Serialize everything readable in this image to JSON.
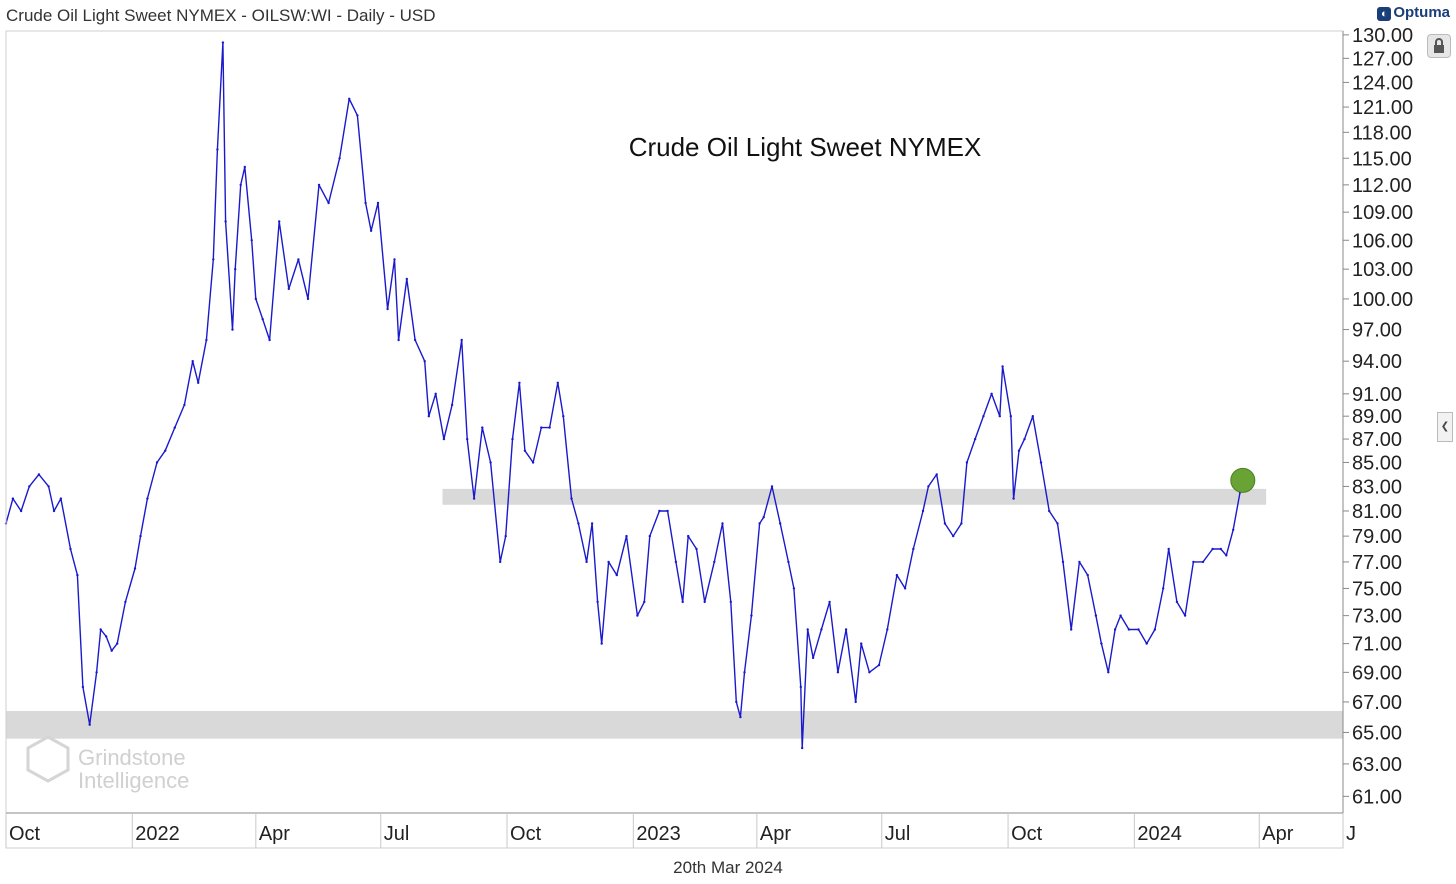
{
  "header": {
    "title": "Crude Oil Light Sweet NYMEX - OILSW:WI - Daily - USD",
    "brand": "Optuma"
  },
  "footer": {
    "date": "20th Mar 2024"
  },
  "watermark": {
    "line1": "Grindstone",
    "line2": "Intelligence"
  },
  "colors": {
    "line": "#1a1acc",
    "band": "#d9d9d9",
    "marker": "#6aa335",
    "axis": "#888888"
  },
  "chart_data": {
    "type": "line",
    "title": "Crude Oil Light Sweet NYMEX",
    "xlabel": "",
    "ylabel": "",
    "log_scale": true,
    "ylim": [
      60.0,
      130.5
    ],
    "xlim": [
      "2021-10-01",
      "2024-06-01"
    ],
    "x_ticks": [
      {
        "date": "2021-10-01",
        "label": "Oct"
      },
      {
        "date": "2022-01-01",
        "label": "2022"
      },
      {
        "date": "2022-04-01",
        "label": "Apr"
      },
      {
        "date": "2022-07-01",
        "label": "Jul"
      },
      {
        "date": "2022-10-01",
        "label": "Oct"
      },
      {
        "date": "2023-01-01",
        "label": "2023"
      },
      {
        "date": "2023-04-01",
        "label": "Apr"
      },
      {
        "date": "2023-07-01",
        "label": "Jul"
      },
      {
        "date": "2023-10-01",
        "label": "Oct"
      },
      {
        "date": "2024-01-01",
        "label": "2024"
      },
      {
        "date": "2024-04-01",
        "label": "Apr"
      },
      {
        "date": "2024-06-01",
        "label": "J"
      }
    ],
    "y_ticks": [
      "130.00",
      "127.00",
      "124.00",
      "121.00",
      "118.00",
      "115.00",
      "112.00",
      "109.00",
      "106.00",
      "103.00",
      "100.00",
      "97.00",
      "94.00",
      "91.00",
      "89.00",
      "87.00",
      "85.00",
      "83.00",
      "81.00",
      "79.00",
      "77.00",
      "75.00",
      "73.00",
      "71.00",
      "69.00",
      "67.00",
      "65.00",
      "63.00",
      "61.00"
    ],
    "grid": false,
    "bands": [
      {
        "name": "resistance zone",
        "y_low": 81.5,
        "y_high": 82.8,
        "x_start": "2022-08-15",
        "x_end": "2024-04-06"
      },
      {
        "name": "support zone",
        "y_low": 64.6,
        "y_high": 66.4,
        "x_start": "2021-10-01",
        "x_end": "2024-06-01"
      }
    ],
    "marker": {
      "date": "2024-03-20",
      "value": 83.5
    },
    "series": [
      {
        "values": [
          [
            "2021-10-01",
            80
          ],
          [
            "2021-10-06",
            82
          ],
          [
            "2021-10-12",
            81
          ],
          [
            "2021-10-18",
            83
          ],
          [
            "2021-10-25",
            84
          ],
          [
            "2021-11-01",
            83
          ],
          [
            "2021-11-05",
            81
          ],
          [
            "2021-11-10",
            82
          ],
          [
            "2021-11-17",
            78
          ],
          [
            "2021-11-22",
            76
          ],
          [
            "2021-11-26",
            68
          ],
          [
            "2021-12-01",
            65.5
          ],
          [
            "2021-12-06",
            69
          ],
          [
            "2021-12-09",
            72
          ],
          [
            "2021-12-13",
            71.5
          ],
          [
            "2021-12-17",
            70.5
          ],
          [
            "2021-12-21",
            71
          ],
          [
            "2021-12-27",
            74
          ],
          [
            "2022-01-03",
            76.5
          ],
          [
            "2022-01-07",
            79
          ],
          [
            "2022-01-12",
            82
          ],
          [
            "2022-01-19",
            85
          ],
          [
            "2022-01-25",
            86
          ],
          [
            "2022-02-01",
            88
          ],
          [
            "2022-02-08",
            90
          ],
          [
            "2022-02-14",
            94
          ],
          [
            "2022-02-18",
            92
          ],
          [
            "2022-02-24",
            96
          ],
          [
            "2022-03-01",
            104
          ],
          [
            "2022-03-04",
            116
          ],
          [
            "2022-03-08",
            129
          ],
          [
            "2022-03-10",
            108
          ],
          [
            "2022-03-15",
            97
          ],
          [
            "2022-03-17",
            103
          ],
          [
            "2022-03-21",
            112
          ],
          [
            "2022-03-24",
            114
          ],
          [
            "2022-03-29",
            106
          ],
          [
            "2022-04-01",
            100
          ],
          [
            "2022-04-06",
            98
          ],
          [
            "2022-04-11",
            96
          ],
          [
            "2022-04-18",
            108
          ],
          [
            "2022-04-25",
            101
          ],
          [
            "2022-05-02",
            104
          ],
          [
            "2022-05-09",
            100
          ],
          [
            "2022-05-17",
            112
          ],
          [
            "2022-05-24",
            110
          ],
          [
            "2022-06-01",
            115
          ],
          [
            "2022-06-08",
            122
          ],
          [
            "2022-06-14",
            120
          ],
          [
            "2022-06-20",
            110
          ],
          [
            "2022-06-24",
            107
          ],
          [
            "2022-06-29",
            110
          ],
          [
            "2022-07-06",
            99
          ],
          [
            "2022-07-11",
            104
          ],
          [
            "2022-07-14",
            96
          ],
          [
            "2022-07-20",
            102
          ],
          [
            "2022-07-26",
            96
          ],
          [
            "2022-08-02",
            94
          ],
          [
            "2022-08-05",
            89
          ],
          [
            "2022-08-10",
            91
          ],
          [
            "2022-08-16",
            87
          ],
          [
            "2022-08-22",
            90
          ],
          [
            "2022-08-29",
            96
          ],
          [
            "2022-09-02",
            87
          ],
          [
            "2022-09-07",
            82
          ],
          [
            "2022-09-13",
            88
          ],
          [
            "2022-09-19",
            85
          ],
          [
            "2022-09-26",
            77
          ],
          [
            "2022-09-30",
            79
          ],
          [
            "2022-10-05",
            87
          ],
          [
            "2022-10-10",
            92
          ],
          [
            "2022-10-14",
            86
          ],
          [
            "2022-10-20",
            85
          ],
          [
            "2022-10-26",
            88
          ],
          [
            "2022-11-01",
            88
          ],
          [
            "2022-11-07",
            92
          ],
          [
            "2022-11-11",
            89
          ],
          [
            "2022-11-17",
            82
          ],
          [
            "2022-11-22",
            80
          ],
          [
            "2022-11-28",
            77
          ],
          [
            "2022-12-02",
            80
          ],
          [
            "2022-12-06",
            74
          ],
          [
            "2022-12-09",
            71
          ],
          [
            "2022-12-14",
            77
          ],
          [
            "2022-12-20",
            76
          ],
          [
            "2022-12-27",
            79
          ],
          [
            "2023-01-04",
            73
          ],
          [
            "2023-01-09",
            74
          ],
          [
            "2023-01-13",
            79
          ],
          [
            "2023-01-20",
            81
          ],
          [
            "2023-01-26",
            81
          ],
          [
            "2023-02-01",
            77
          ],
          [
            "2023-02-06",
            74
          ],
          [
            "2023-02-10",
            79
          ],
          [
            "2023-02-16",
            78
          ],
          [
            "2023-02-22",
            74
          ],
          [
            "2023-03-01",
            77
          ],
          [
            "2023-03-07",
            80
          ],
          [
            "2023-03-13",
            74
          ],
          [
            "2023-03-17",
            67
          ],
          [
            "2023-03-20",
            66
          ],
          [
            "2023-03-23",
            69
          ],
          [
            "2023-03-28",
            73
          ],
          [
            "2023-04-03",
            80
          ],
          [
            "2023-04-06",
            80.5
          ],
          [
            "2023-04-12",
            83
          ],
          [
            "2023-04-18",
            80
          ],
          [
            "2023-04-24",
            77
          ],
          [
            "2023-04-28",
            75
          ],
          [
            "2023-05-03",
            68
          ],
          [
            "2023-05-04",
            64
          ],
          [
            "2023-05-08",
            72
          ],
          [
            "2023-05-12",
            70
          ],
          [
            "2023-05-18",
            72
          ],
          [
            "2023-05-24",
            74
          ],
          [
            "2023-05-30",
            69
          ],
          [
            "2023-06-05",
            72
          ],
          [
            "2023-06-12",
            67
          ],
          [
            "2023-06-16",
            71
          ],
          [
            "2023-06-22",
            69
          ],
          [
            "2023-06-29",
            69.5
          ],
          [
            "2023-07-05",
            72
          ],
          [
            "2023-07-12",
            76
          ],
          [
            "2023-07-18",
            75
          ],
          [
            "2023-07-24",
            78
          ],
          [
            "2023-07-31",
            81
          ],
          [
            "2023-08-04",
            83
          ],
          [
            "2023-08-10",
            84
          ],
          [
            "2023-08-16",
            80
          ],
          [
            "2023-08-22",
            79
          ],
          [
            "2023-08-28",
            80
          ],
          [
            "2023-09-01",
            85
          ],
          [
            "2023-09-07",
            87
          ],
          [
            "2023-09-13",
            89
          ],
          [
            "2023-09-19",
            91
          ],
          [
            "2023-09-25",
            89
          ],
          [
            "2023-09-27",
            93.5
          ],
          [
            "2023-10-03",
            89
          ],
          [
            "2023-10-05",
            82
          ],
          [
            "2023-10-09",
            86
          ],
          [
            "2023-10-13",
            87
          ],
          [
            "2023-10-19",
            89
          ],
          [
            "2023-10-25",
            85
          ],
          [
            "2023-10-31",
            81
          ],
          [
            "2023-11-06",
            80
          ],
          [
            "2023-11-10",
            77
          ],
          [
            "2023-11-16",
            72
          ],
          [
            "2023-11-22",
            77
          ],
          [
            "2023-11-28",
            76
          ],
          [
            "2023-12-04",
            73
          ],
          [
            "2023-12-08",
            71
          ],
          [
            "2023-12-13",
            69
          ],
          [
            "2023-12-18",
            72
          ],
          [
            "2023-12-22",
            73
          ],
          [
            "2023-12-28",
            72
          ],
          [
            "2024-01-04",
            72
          ],
          [
            "2024-01-10",
            71
          ],
          [
            "2024-01-16",
            72
          ],
          [
            "2024-01-22",
            75
          ],
          [
            "2024-01-26",
            78
          ],
          [
            "2024-02-01",
            74
          ],
          [
            "2024-02-07",
            73
          ],
          [
            "2024-02-13",
            77
          ],
          [
            "2024-02-20",
            77
          ],
          [
            "2024-02-27",
            78
          ],
          [
            "2024-03-04",
            78
          ],
          [
            "2024-03-08",
            77.5
          ],
          [
            "2024-03-13",
            79.5
          ],
          [
            "2024-03-18",
            82.5
          ],
          [
            "2024-03-20",
            83.5
          ]
        ]
      }
    ]
  }
}
